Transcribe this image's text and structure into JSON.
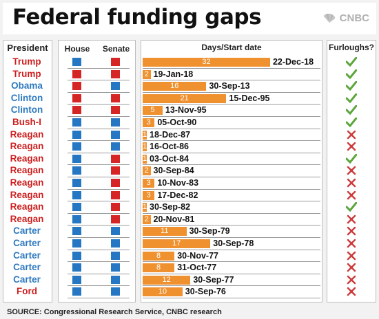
{
  "title": "Federal funding gaps",
  "logo_text": "CNBC",
  "headers": {
    "president": "President",
    "house": "House",
    "senate": "Senate",
    "days": "Days/Start date",
    "furloughs": "Furloughs?"
  },
  "colors": {
    "republican": "#cc1f1f",
    "democrat": "#2e7ac0",
    "house_blue": "#2577c4",
    "senate_red": "#d62525",
    "bar": "#f0912f",
    "yes_check": "#5aa63b",
    "no_x": "#cc3a3a"
  },
  "source": "SOURCE: Congressional Research Service, CNBC research",
  "chart_data": {
    "type": "bar",
    "title": "Federal funding gaps",
    "rows": [
      {
        "president": "Trump",
        "party": "R",
        "house": "D",
        "senate": "R",
        "days": 32,
        "start": "22-Dec-18",
        "furloughs": true
      },
      {
        "president": "Trump",
        "party": "R",
        "house": "R",
        "senate": "R",
        "days": 2,
        "start": "19-Jan-18",
        "furloughs": true
      },
      {
        "president": "Obama",
        "party": "D",
        "house": "R",
        "senate": "D",
        "days": 16,
        "start": "30-Sep-13",
        "furloughs": true
      },
      {
        "president": "Clinton",
        "party": "D",
        "house": "R",
        "senate": "R",
        "days": 21,
        "start": "15-Dec-95",
        "furloughs": true
      },
      {
        "president": "Clinton",
        "party": "D",
        "house": "R",
        "senate": "R",
        "days": 5,
        "start": "13-Nov-95",
        "furloughs": true
      },
      {
        "president": "Bush-I",
        "party": "R",
        "house": "D",
        "senate": "D",
        "days": 3,
        "start": "05-Oct-90",
        "furloughs": true
      },
      {
        "president": "Reagan",
        "party": "R",
        "house": "D",
        "senate": "D",
        "days": 1,
        "start": "18-Dec-87",
        "furloughs": false
      },
      {
        "president": "Reagan",
        "party": "R",
        "house": "D",
        "senate": "D",
        "days": 1,
        "start": "16-Oct-86",
        "furloughs": false
      },
      {
        "president": "Reagan",
        "party": "R",
        "house": "D",
        "senate": "R",
        "days": 1,
        "start": "03-Oct-84",
        "furloughs": true
      },
      {
        "president": "Reagan",
        "party": "R",
        "house": "D",
        "senate": "R",
        "days": 2,
        "start": "30-Sep-84",
        "furloughs": false
      },
      {
        "president": "Reagan",
        "party": "R",
        "house": "D",
        "senate": "R",
        "days": 3,
        "start": "10-Nov-83",
        "furloughs": false
      },
      {
        "president": "Reagan",
        "party": "R",
        "house": "D",
        "senate": "R",
        "days": 3,
        "start": "17-Dec-82",
        "furloughs": false
      },
      {
        "president": "Reagan",
        "party": "R",
        "house": "D",
        "senate": "R",
        "days": 1,
        "start": "30-Sep-82",
        "furloughs": true
      },
      {
        "president": "Reagan",
        "party": "R",
        "house": "D",
        "senate": "R",
        "days": 2,
        "start": "20-Nov-81",
        "furloughs": false
      },
      {
        "president": "Carter",
        "party": "D",
        "house": "D",
        "senate": "D",
        "days": 11,
        "start": "30-Sep-79",
        "furloughs": false
      },
      {
        "president": "Carter",
        "party": "D",
        "house": "D",
        "senate": "D",
        "days": 17,
        "start": "30-Sep-78",
        "furloughs": false
      },
      {
        "president": "Carter",
        "party": "D",
        "house": "D",
        "senate": "D",
        "days": 8,
        "start": "30-Nov-77",
        "furloughs": false
      },
      {
        "president": "Carter",
        "party": "D",
        "house": "D",
        "senate": "D",
        "days": 8,
        "start": "31-Oct-77",
        "furloughs": false
      },
      {
        "president": "Carter",
        "party": "D",
        "house": "D",
        "senate": "D",
        "days": 12,
        "start": "30-Sep-77",
        "furloughs": false
      },
      {
        "president": "Ford",
        "party": "R",
        "house": "D",
        "senate": "D",
        "days": 10,
        "start": "30-Sep-76",
        "furloughs": false
      }
    ]
  }
}
